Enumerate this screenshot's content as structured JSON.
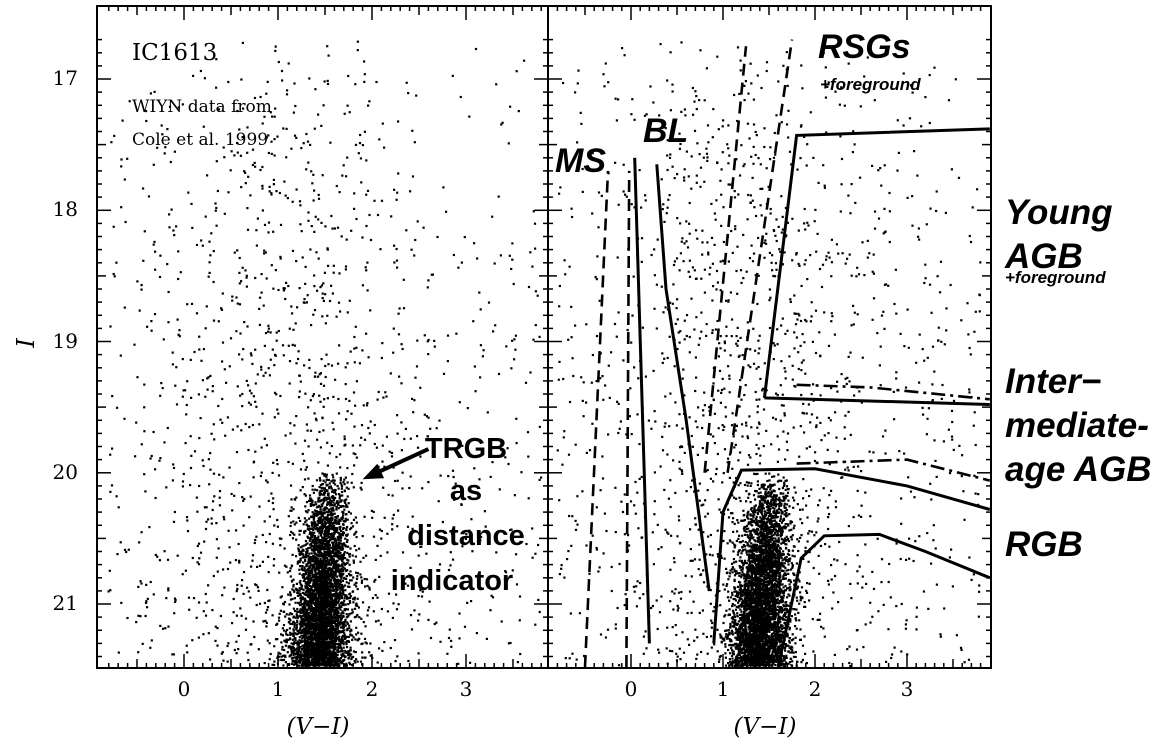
{
  "chart_data": [
    {
      "type": "scatter",
      "panel": "left",
      "title": "IC1613",
      "note_line1": "WIYN data from",
      "note_line2": "Cole et al. 1999",
      "xlabel": "(V−I)",
      "ylabel": "I",
      "xlim": [
        -0.9,
        3.9
      ],
      "ylim": [
        21.5,
        16.6
      ],
      "x_ticks": [
        "0",
        "1",
        "2",
        "3"
      ],
      "y_ticks": [
        "17",
        "18",
        "19",
        "20",
        "21"
      ],
      "annotation": {
        "lines": [
          "TRGB",
          "as",
          "distance",
          "indicator"
        ],
        "arrow_from": [
          2.6,
          19.82
        ],
        "arrow_to": [
          1.9,
          20.05
        ]
      },
      "point_groups": [
        {
          "name": "RGB",
          "count": 4200,
          "x_center": 1.42,
          "y_min": 20.0,
          "y_max": 21.5
        },
        {
          "name": "field",
          "count": 1500,
          "x_range": [
            -0.8,
            3.8
          ],
          "y_range": [
            16.7,
            21.5
          ]
        }
      ]
    },
    {
      "type": "scatter",
      "panel": "right",
      "xlabel": "(V−I)",
      "xlim": [
        -0.9,
        3.9
      ],
      "ylim": [
        21.5,
        16.6
      ],
      "x_ticks": [
        "0",
        "1",
        "2",
        "3"
      ],
      "region_labels": [
        {
          "text": "MS",
          "x": -0.75,
          "y": 17.65
        },
        {
          "text": "BL",
          "x": 0.27,
          "y": 17.35
        },
        {
          "text": "RSGs",
          "x": 2.0,
          "y": 16.88
        },
        {
          "text": "+foreground",
          "x": 2.0,
          "y": 17.2
        }
      ],
      "side_labels": [
        {
          "text": "Young",
          "y": 18.02
        },
        {
          "text": "AGB",
          "y": 18.4
        },
        {
          "text": "+foreground",
          "y": 18.75
        },
        {
          "text": "Inter−",
          "y": 19.31
        },
        {
          "text": "mediate-",
          "y": 19.71
        },
        {
          "text": "age AGB",
          "y": 20.09
        },
        {
          "text": "RGB",
          "y": 20.6
        }
      ],
      "boundaries": [
        {
          "name": "MS-left",
          "style": "dashed",
          "points": [
            [
              -0.5,
              21.5
            ],
            [
              -0.25,
              17.7
            ]
          ]
        },
        {
          "name": "MS-right",
          "style": "dashed",
          "points": [
            [
              -0.05,
              21.5
            ],
            [
              -0.02,
              17.7
            ]
          ]
        },
        {
          "name": "MS-solid",
          "style": "solid",
          "points": [
            [
              0.2,
              21.3
            ],
            [
              0.04,
              17.6
            ]
          ]
        },
        {
          "name": "BL-solid",
          "style": "solid",
          "points": [
            [
              0.28,
              17.65
            ],
            [
              0.38,
              18.6
            ],
            [
              0.6,
              19.6
            ],
            [
              0.85,
              20.9
            ]
          ]
        },
        {
          "name": "RSG-left",
          "style": "dashed",
          "points": [
            [
              0.8,
              20.0
            ],
            [
              1.25,
              16.75
            ]
          ]
        },
        {
          "name": "RSG-right",
          "style": "dashed",
          "points": [
            [
              1.05,
              20.0
            ],
            [
              1.75,
              16.7
            ]
          ]
        },
        {
          "name": "young-AGB-box",
          "style": "solid",
          "points": [
            [
              1.45,
              19.43
            ],
            [
              1.8,
              17.43
            ],
            [
              3.9,
              17.38
            ]
          ]
        },
        {
          "name": "young-AGB-bottom",
          "style": "solid",
          "points": [
            [
              1.45,
              19.43
            ],
            [
              3.9,
              19.48
            ]
          ]
        },
        {
          "name": "int-AGB-dashdot",
          "style": "dashdot",
          "points": [
            [
              1.8,
              19.33
            ],
            [
              2.6,
              19.35
            ],
            [
              3.9,
              19.44
            ]
          ]
        },
        {
          "name": "int-AGB-dashdot-2",
          "style": "dashdot",
          "points": [
            [
              1.8,
              19.93
            ],
            [
              3.0,
              19.9
            ],
            [
              3.9,
              20.06
            ]
          ]
        },
        {
          "name": "RGB-top",
          "style": "solid",
          "points": [
            [
              0.9,
              21.3
            ],
            [
              1.0,
              20.3
            ],
            [
              1.2,
              19.98
            ],
            [
              2.0,
              19.97
            ],
            [
              3.0,
              20.1
            ],
            [
              3.9,
              20.28
            ]
          ]
        },
        {
          "name": "RGB-bottom",
          "style": "solid",
          "points": [
            [
              1.6,
              21.5
            ],
            [
              1.85,
              20.65
            ],
            [
              2.1,
              20.48
            ],
            [
              2.7,
              20.47
            ],
            [
              3.2,
              20.6
            ],
            [
              3.9,
              20.8
            ]
          ]
        }
      ],
      "point_groups": [
        {
          "name": "RGB",
          "count": 4200,
          "x_center": 1.38,
          "y_min": 20.0,
          "y_max": 21.5
        },
        {
          "name": "field",
          "count": 1700,
          "x_range": [
            -0.8,
            3.8
          ],
          "y_range": [
            16.7,
            21.5
          ]
        }
      ]
    }
  ]
}
